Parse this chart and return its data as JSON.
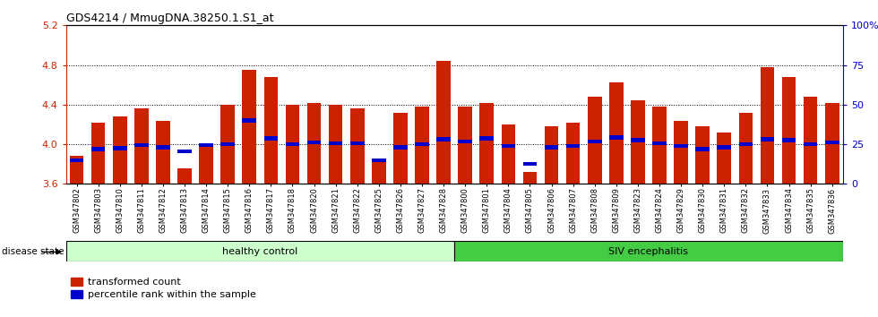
{
  "title": "GDS4214 / MmugDNA.38250.1.S1_at",
  "samples": [
    "GSM347802",
    "GSM347803",
    "GSM347810",
    "GSM347811",
    "GSM347812",
    "GSM347813",
    "GSM347814",
    "GSM347815",
    "GSM347816",
    "GSM347817",
    "GSM347818",
    "GSM347820",
    "GSM347821",
    "GSM347822",
    "GSM347825",
    "GSM347826",
    "GSM347827",
    "GSM347828",
    "GSM347800",
    "GSM347801",
    "GSM347804",
    "GSM347805",
    "GSM347806",
    "GSM347807",
    "GSM347808",
    "GSM347809",
    "GSM347823",
    "GSM347824",
    "GSM347829",
    "GSM347830",
    "GSM347831",
    "GSM347832",
    "GSM347833",
    "GSM347834",
    "GSM347835",
    "GSM347836"
  ],
  "bar_values": [
    3.88,
    4.22,
    4.28,
    4.36,
    4.24,
    3.76,
    4.01,
    4.4,
    4.75,
    4.68,
    4.4,
    4.42,
    4.4,
    4.36,
    3.86,
    4.32,
    4.38,
    4.84,
    4.38,
    4.42,
    4.2,
    3.72,
    4.18,
    4.22,
    4.48,
    4.62,
    4.44,
    4.38,
    4.24,
    4.18,
    4.12,
    4.32,
    4.78,
    4.68,
    4.48,
    4.42
  ],
  "percentile_values": [
    3.84,
    3.95,
    3.96,
    3.99,
    3.97,
    3.93,
    3.99,
    4.0,
    4.24,
    4.06,
    4.0,
    4.02,
    4.01,
    4.01,
    3.84,
    3.97,
    4.0,
    4.05,
    4.03,
    4.06,
    3.98,
    3.8,
    3.97,
    3.98,
    4.03,
    4.07,
    4.04,
    4.01,
    3.98,
    3.95,
    3.97,
    4.0,
    4.05,
    4.04,
    4.0,
    4.02
  ],
  "healthy_count": 18,
  "siv_count": 18,
  "ylim": [
    3.6,
    5.2
  ],
  "y_ticks": [
    3.6,
    4.0,
    4.4,
    4.8,
    5.2
  ],
  "right_yticks": [
    0,
    25,
    50,
    75,
    100
  ],
  "bar_color": "#cc2200",
  "percentile_color": "#0000cc",
  "healthy_bg": "#ccffcc",
  "siv_bg": "#44cc44",
  "label_color_left": "#cc2200",
  "label_color_right": "#0000cc"
}
